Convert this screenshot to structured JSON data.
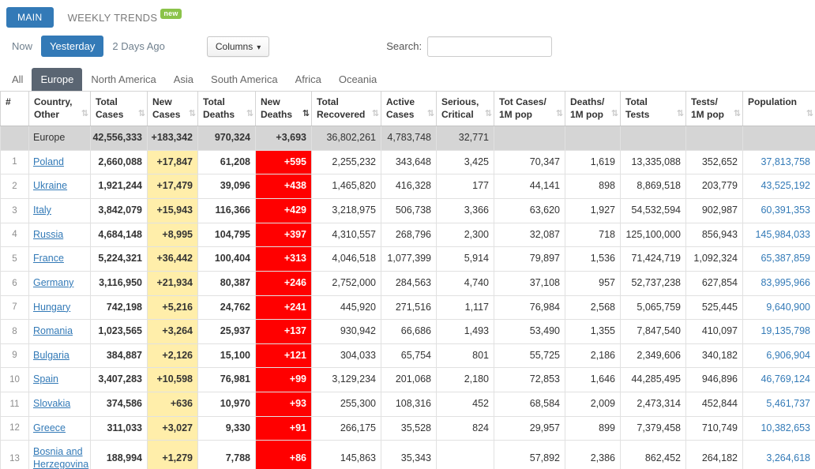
{
  "topnav": {
    "main": "MAIN",
    "weekly_trends": "WEEKLY TRENDS",
    "new_badge": "new"
  },
  "toolbar": {
    "time_tabs": [
      {
        "label": "Now",
        "active": false
      },
      {
        "label": "Yesterday",
        "active": true
      },
      {
        "label": "2 Days Ago",
        "active": false
      }
    ],
    "columns_button": "Columns",
    "search_label": "Search:",
    "search_value": ""
  },
  "region_tabs": [
    {
      "label": "All",
      "active": false
    },
    {
      "label": "Europe",
      "active": true
    },
    {
      "label": "North America",
      "active": false
    },
    {
      "label": "Asia",
      "active": false
    },
    {
      "label": "South America",
      "active": false
    },
    {
      "label": "Africa",
      "active": false
    },
    {
      "label": "Oceania",
      "active": false
    }
  ],
  "icons": {
    "sort": "⇅",
    "caret_down": "▾"
  },
  "table": {
    "headers": [
      {
        "lines": [
          "#"
        ],
        "sortable": false,
        "sort_active": false
      },
      {
        "lines": [
          "Country,",
          "Other"
        ],
        "sortable": true,
        "sort_active": false
      },
      {
        "lines": [
          "Total",
          "Cases"
        ],
        "sortable": true,
        "sort_active": false
      },
      {
        "lines": [
          "New",
          "Cases"
        ],
        "sortable": true,
        "sort_active": false
      },
      {
        "lines": [
          "Total",
          "Deaths"
        ],
        "sortable": true,
        "sort_active": false
      },
      {
        "lines": [
          "New",
          "Deaths"
        ],
        "sortable": true,
        "sort_active": true
      },
      {
        "lines": [
          "Total",
          "Recovered"
        ],
        "sortable": true,
        "sort_active": false
      },
      {
        "lines": [
          "Active",
          "Cases"
        ],
        "sortable": true,
        "sort_active": false
      },
      {
        "lines": [
          "Serious,",
          "Critical"
        ],
        "sortable": true,
        "sort_active": false
      },
      {
        "lines": [
          "Tot Cases/",
          "1M pop"
        ],
        "sortable": true,
        "sort_active": false
      },
      {
        "lines": [
          "Deaths/",
          "1M pop"
        ],
        "sortable": true,
        "sort_active": false
      },
      {
        "lines": [
          "Total",
          "Tests"
        ],
        "sortable": true,
        "sort_active": false
      },
      {
        "lines": [
          "Tests/",
          "1M pop"
        ],
        "sortable": true,
        "sort_active": false
      },
      {
        "lines": [
          "Population"
        ],
        "sortable": true,
        "sort_active": false
      }
    ],
    "totals_row": [
      "",
      "Europe",
      "42,556,333",
      "+183,342",
      "970,324",
      "+3,693",
      "36,802,261",
      "4,783,748",
      "32,771",
      "",
      "",
      "",
      "",
      ""
    ],
    "rows": [
      [
        "1",
        "Poland",
        "2,660,088",
        "+17,847",
        "61,208",
        "+595",
        "2,255,232",
        "343,648",
        "3,425",
        "70,347",
        "1,619",
        "13,335,088",
        "352,652",
        "37,813,758"
      ],
      [
        "2",
        "Ukraine",
        "1,921,244",
        "+17,479",
        "39,096",
        "+438",
        "1,465,820",
        "416,328",
        "177",
        "44,141",
        "898",
        "8,869,518",
        "203,779",
        "43,525,192"
      ],
      [
        "3",
        "Italy",
        "3,842,079",
        "+15,943",
        "116,366",
        "+429",
        "3,218,975",
        "506,738",
        "3,366",
        "63,620",
        "1,927",
        "54,532,594",
        "902,987",
        "60,391,353"
      ],
      [
        "4",
        "Russia",
        "4,684,148",
        "+8,995",
        "104,795",
        "+397",
        "4,310,557",
        "268,796",
        "2,300",
        "32,087",
        "718",
        "125,100,000",
        "856,943",
        "145,984,033"
      ],
      [
        "5",
        "France",
        "5,224,321",
        "+36,442",
        "100,404",
        "+313",
        "4,046,518",
        "1,077,399",
        "5,914",
        "79,897",
        "1,536",
        "71,424,719",
        "1,092,324",
        "65,387,859"
      ],
      [
        "6",
        "Germany",
        "3,116,950",
        "+21,934",
        "80,387",
        "+246",
        "2,752,000",
        "284,563",
        "4,740",
        "37,108",
        "957",
        "52,737,238",
        "627,854",
        "83,995,966"
      ],
      [
        "7",
        "Hungary",
        "742,198",
        "+5,216",
        "24,762",
        "+241",
        "445,920",
        "271,516",
        "1,117",
        "76,984",
        "2,568",
        "5,065,759",
        "525,445",
        "9,640,900"
      ],
      [
        "8",
        "Romania",
        "1,023,565",
        "+3,264",
        "25,937",
        "+137",
        "930,942",
        "66,686",
        "1,493",
        "53,490",
        "1,355",
        "7,847,540",
        "410,097",
        "19,135,798"
      ],
      [
        "9",
        "Bulgaria",
        "384,887",
        "+2,126",
        "15,100",
        "+121",
        "304,033",
        "65,754",
        "801",
        "55,725",
        "2,186",
        "2,349,606",
        "340,182",
        "6,906,904"
      ],
      [
        "10",
        "Spain",
        "3,407,283",
        "+10,598",
        "76,981",
        "+99",
        "3,129,234",
        "201,068",
        "2,180",
        "72,853",
        "1,646",
        "44,285,495",
        "946,896",
        "46,769,124"
      ],
      [
        "11",
        "Slovakia",
        "374,586",
        "+636",
        "10,970",
        "+93",
        "255,300",
        "108,316",
        "452",
        "68,584",
        "2,009",
        "2,473,314",
        "452,844",
        "5,461,737"
      ],
      [
        "12",
        "Greece",
        "311,033",
        "+3,027",
        "9,330",
        "+91",
        "266,175",
        "35,528",
        "824",
        "29,957",
        "899",
        "7,379,458",
        "710,749",
        "10,382,653"
      ],
      [
        "13",
        "Bosnia and Herzegovina",
        "188,994",
        "+1,279",
        "7,788",
        "+86",
        "145,863",
        "35,343",
        "",
        "57,892",
        "2,386",
        "862,452",
        "264,182",
        "3,264,618"
      ]
    ]
  },
  "colors": {
    "accent_blue": "#337ab7",
    "new_badge_green": "#8bc34a",
    "new_cases_bg": "#ffeeaa",
    "new_deaths_bg": "#ff0000",
    "active_region_bg": "#5a6572",
    "totals_row_bg": "#d5d5d5",
    "link_blue": "#337ab7"
  }
}
